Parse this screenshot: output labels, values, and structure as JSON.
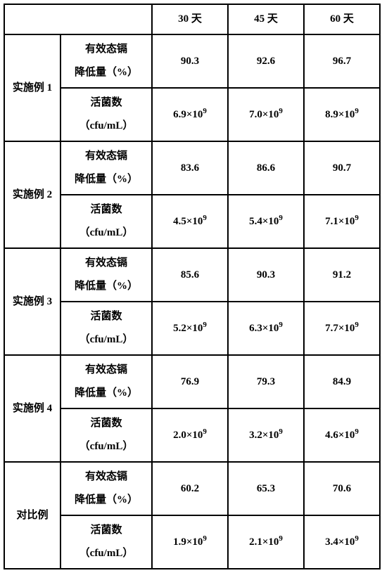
{
  "header": {
    "blank": "",
    "col30": "30 天",
    "col45": "45 天",
    "col60": "60 天"
  },
  "rows": [
    {
      "group": "实施例 1",
      "metric1_l1": "有效态镉",
      "metric1_l2": "降低量（%）",
      "v1_30": "90.3",
      "v1_45": "92.6",
      "v1_60": "96.7",
      "metric2_l1": "活菌数",
      "metric2_l2": "（cfu/mL）",
      "v2_30": "6.9×10",
      "v2_45": "7.0×10",
      "v2_60": "8.9×10",
      "exp2_30": "9",
      "exp2_45": "9",
      "exp2_60": "9"
    },
    {
      "group": "实施例 2",
      "metric1_l1": "有效态镉",
      "metric1_l2": "降低量（%）",
      "v1_30": "83.6",
      "v1_45": "86.6",
      "v1_60": "90.7",
      "metric2_l1": "活菌数",
      "metric2_l2": "（cfu/mL）",
      "v2_30": "4.5×10",
      "v2_45": "5.4×10",
      "v2_60": "7.1×10",
      "exp2_30": "9",
      "exp2_45": "9",
      "exp2_60": "9"
    },
    {
      "group": "实施例 3",
      "metric1_l1": "有效态镉",
      "metric1_l2": "降低量（%）",
      "v1_30": "85.6",
      "v1_45": "90.3",
      "v1_60": "91.2",
      "metric2_l1": "活菌数",
      "metric2_l2": "（cfu/mL）",
      "v2_30": "5.2×10",
      "v2_45": "6.3×10",
      "v2_60": "7.7×10",
      "exp2_30": "9",
      "exp2_45": "9",
      "exp2_60": "9"
    },
    {
      "group": "实施例 4",
      "metric1_l1": "有效态镉",
      "metric1_l2": "降低量（%）",
      "v1_30": "76.9",
      "v1_45": "79.3",
      "v1_60": "84.9",
      "metric2_l1": "活菌数",
      "metric2_l2": "（cfu/mL）",
      "v2_30": "2.0×10",
      "v2_45": "3.2×10",
      "v2_60": "4.6×10",
      "exp2_30": "9",
      "exp2_45": "9",
      "exp2_60": "9"
    },
    {
      "group": "对比例",
      "metric1_l1": "有效态镉",
      "metric1_l2": "降低量（%）",
      "v1_30": "60.2",
      "v1_45": "65.3",
      "v1_60": "70.6",
      "metric2_l1": "活菌数",
      "metric2_l2": "（cfu/mL）",
      "v2_30": "1.9×10",
      "v2_45": "2.1×10",
      "v2_60": "3.4×10",
      "exp2_30": "9",
      "exp2_45": "9",
      "exp2_60": "9"
    }
  ]
}
